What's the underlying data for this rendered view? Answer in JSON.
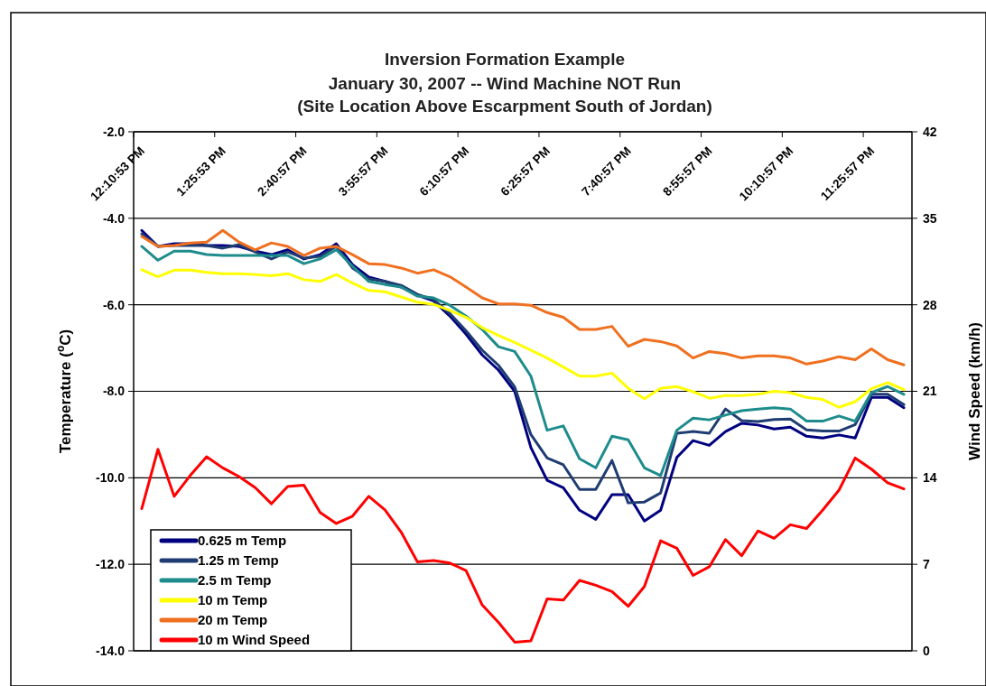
{
  "chart_data": {
    "type": "line",
    "title": "Inversion Formation Example",
    "subtitle": "January 30, 2007 -- Wind Machine NOT Run\n(Site Location Above Escarpment South of Jordan)",
    "ylabel": "Temperature ($^{o}$C)",
    "y2label": "Wind Speed (km/h)",
    "categories": [
      "12:10:53 PM",
      null,
      null,
      null,
      null,
      "1:25:53 PM",
      null,
      null,
      null,
      null,
      "2:40:57 PM",
      null,
      null,
      null,
      null,
      "3:55:57 PM",
      null,
      null,
      null,
      null,
      "6:10:57 PM",
      null,
      null,
      null,
      null,
      "6:25:57 PM",
      null,
      null,
      null,
      null,
      "7:40:57 PM",
      null,
      null,
      null,
      null,
      "8:55:57 PM",
      null,
      null,
      null,
      null,
      "10:10:57 PM",
      null,
      null,
      null,
      null,
      "11:25:57 PM",
      null,
      null
    ],
    "series": [
      {
        "name": "0.625 m Temp",
        "color": "#000080",
        "values": [
          -4.28,
          -4.65,
          -4.59,
          -4.59,
          -4.63,
          -4.63,
          -4.65,
          -4.76,
          -4.84,
          -4.73,
          -4.94,
          -4.84,
          -4.59,
          -5.07,
          -5.36,
          -5.46,
          -5.59,
          -5.78,
          -5.91,
          -6.26,
          -6.68,
          -7.16,
          -7.51,
          -8.0,
          -9.3,
          -10.06,
          -10.23,
          -10.75,
          -10.96,
          -10.39,
          -10.39,
          -11.0,
          -10.75,
          -9.53,
          -9.14,
          -9.25,
          -8.93,
          -8.74,
          -8.78,
          -8.87,
          -8.83,
          -9.04,
          -9.08,
          -9.01,
          -9.08,
          -8.14,
          -8.14,
          -8.38
        ]
      },
      {
        "name": "1.25 m Temp",
        "color": "#1f3d73",
        "values": [
          -4.36,
          -4.65,
          -4.63,
          -4.63,
          -4.63,
          -4.69,
          -4.61,
          -4.78,
          -4.94,
          -4.78,
          -4.92,
          -4.88,
          -4.65,
          -5.15,
          -5.4,
          -5.46,
          -5.55,
          -5.76,
          -5.88,
          -6.2,
          -6.6,
          -7.05,
          -7.4,
          -7.9,
          -9.0,
          -9.54,
          -9.7,
          -10.27,
          -10.27,
          -9.6,
          -10.58,
          -10.56,
          -10.35,
          -8.97,
          -8.93,
          -8.97,
          -8.41,
          -8.68,
          -8.7,
          -8.65,
          -8.64,
          -8.89,
          -8.92,
          -8.92,
          -8.77,
          -8.07,
          -8.07,
          -8.31
        ]
      },
      {
        "name": "2.5 m Temp",
        "color": "#1e8c8c",
        "values": [
          -4.65,
          -4.97,
          -4.76,
          -4.76,
          -4.84,
          -4.86,
          -4.86,
          -4.86,
          -4.86,
          -4.86,
          -5.05,
          -4.94,
          -4.73,
          -5.11,
          -5.46,
          -5.53,
          -5.59,
          -5.8,
          -5.84,
          -6.01,
          -6.26,
          -6.57,
          -6.97,
          -7.08,
          -7.65,
          -8.9,
          -8.8,
          -9.56,
          -9.77,
          -9.04,
          -9.12,
          -9.77,
          -9.95,
          -8.9,
          -8.62,
          -8.66,
          -8.55,
          -8.45,
          -8.41,
          -8.38,
          -8.41,
          -8.69,
          -8.69,
          -8.57,
          -8.69,
          -8.03,
          -7.89,
          -8.07
        ]
      },
      {
        "name": "10 m Temp",
        "color": "#ffff00",
        "values": [
          -5.19,
          -5.35,
          -5.2,
          -5.2,
          -5.25,
          -5.28,
          -5.28,
          -5.3,
          -5.33,
          -5.28,
          -5.42,
          -5.46,
          -5.3,
          -5.5,
          -5.67,
          -5.7,
          -5.82,
          -5.94,
          -5.99,
          -6.13,
          -6.29,
          -6.53,
          -6.71,
          -6.87,
          -7.05,
          -7.23,
          -7.44,
          -7.65,
          -7.65,
          -7.58,
          -7.93,
          -8.17,
          -7.93,
          -7.89,
          -8.01,
          -8.16,
          -8.1,
          -8.1,
          -8.07,
          -8.0,
          -8.03,
          -8.14,
          -8.19,
          -8.37,
          -8.24,
          -7.94,
          -7.8,
          -7.96
        ]
      },
      {
        "name": "20 m Temp",
        "color": "#f07020",
        "values": [
          -4.42,
          -4.65,
          -4.63,
          -4.57,
          -4.55,
          -4.28,
          -4.55,
          -4.73,
          -4.57,
          -4.65,
          -4.86,
          -4.69,
          -4.65,
          -4.84,
          -5.05,
          -5.07,
          -5.15,
          -5.27,
          -5.19,
          -5.35,
          -5.59,
          -5.84,
          -5.98,
          -5.98,
          -6.01,
          -6.18,
          -6.29,
          -6.57,
          -6.57,
          -6.5,
          -6.96,
          -6.8,
          -6.85,
          -6.95,
          -7.23,
          -7.08,
          -7.13,
          -7.23,
          -7.18,
          -7.18,
          -7.23,
          -7.37,
          -7.3,
          -7.2,
          -7.27,
          -7.02,
          -7.27,
          -7.39
        ]
      },
      {
        "name": "10 m Wind Speed",
        "color": "#ff0000",
        "axis": "y2",
        "values": [
          11.5,
          16.3,
          12.5,
          14.2,
          15.7,
          14.8,
          14.1,
          13.2,
          11.9,
          13.3,
          13.4,
          11.2,
          10.3,
          10.9,
          12.5,
          11.4,
          9.6,
          7.2,
          7.3,
          7.1,
          6.5,
          3.7,
          2.3,
          0.7,
          0.8,
          4.2,
          4.1,
          5.7,
          5.3,
          4.8,
          3.6,
          5.2,
          8.9,
          8.3,
          6.1,
          6.8,
          9.0,
          7.7,
          9.7,
          9.1,
          10.2,
          9.9,
          11.4,
          13.0,
          15.6,
          14.7,
          13.6,
          13.1
        ]
      }
    ],
    "ylim": [
      -14,
      -2
    ],
    "yticks": [
      {
        "value": -14,
        "label": "-14.0"
      },
      {
        "value": -12,
        "label": "-12.0"
      },
      {
        "value": -10,
        "label": "-10.0"
      },
      {
        "value": -8,
        "label": "-8.0"
      },
      {
        "value": -6,
        "label": "-6.0"
      },
      {
        "value": -4,
        "label": "-4.0"
      },
      {
        "value": -2,
        "label": "-2.0"
      }
    ],
    "y2lim": [
      0,
      42
    ],
    "y2ticks": [
      0,
      7,
      14,
      21,
      28,
      35,
      42
    ],
    "grid": "y",
    "legend": "bottom left",
    "marker": "none",
    "line_style": "solid"
  }
}
